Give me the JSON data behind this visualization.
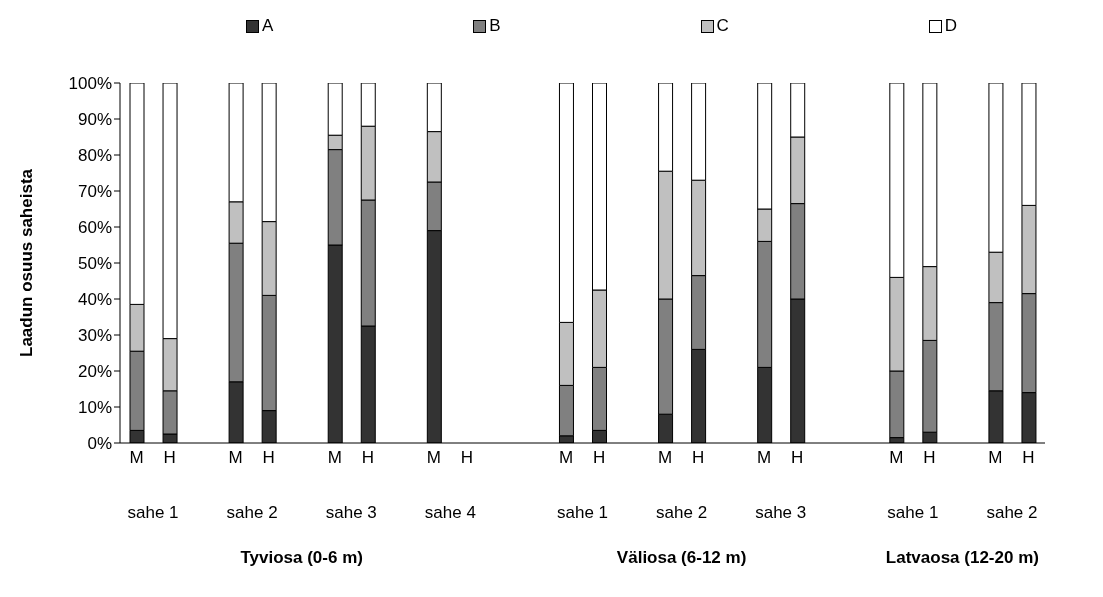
{
  "chart_data": {
    "type": "bar",
    "stacked": true,
    "ylabel": "Laadun osuus saheista",
    "categories": [
      "M",
      "H",
      null,
      "M",
      "H",
      null,
      "M",
      "H",
      null,
      "M",
      "H",
      null,
      null,
      "M",
      "H",
      null,
      "M",
      "H",
      null,
      "M",
      "H",
      null,
      null,
      "M",
      "H",
      null,
      "M",
      "H"
    ],
    "series": [
      {
        "name": "A",
        "color": "#333333",
        "values": [
          3.5,
          2.5,
          null,
          17,
          9,
          null,
          55,
          32.5,
          null,
          59,
          null,
          null,
          null,
          2,
          3.5,
          null,
          8,
          26,
          null,
          21,
          40,
          null,
          null,
          1.5,
          3,
          null,
          14.5,
          14
        ]
      },
      {
        "name": "B",
        "color": "#808080",
        "values": [
          22,
          12,
          null,
          38.5,
          32,
          null,
          26.5,
          35,
          null,
          13.5,
          null,
          null,
          null,
          14,
          17.5,
          null,
          32,
          20.5,
          null,
          35,
          26.5,
          null,
          null,
          18.5,
          25.5,
          null,
          24.5,
          27.5
        ]
      },
      {
        "name": "C",
        "color": "#c0c0c0",
        "values": [
          13,
          14.5,
          null,
          11.5,
          20.5,
          null,
          4,
          20.5,
          null,
          14,
          null,
          null,
          null,
          17.5,
          21.5,
          null,
          35.5,
          26.5,
          null,
          9,
          18.5,
          null,
          null,
          26,
          20.5,
          null,
          14,
          24.5
        ]
      },
      {
        "name": "D",
        "color": "#ffffff",
        "values": [
          61.5,
          71,
          null,
          33,
          38.5,
          null,
          14.5,
          12,
          null,
          13.5,
          null,
          null,
          null,
          66.5,
          57.5,
          null,
          24.5,
          27,
          null,
          35,
          15,
          null,
          null,
          54,
          51,
          null,
          47,
          34
        ]
      }
    ],
    "ylim": [
      0,
      100
    ],
    "yticks": [
      {
        "value": 0,
        "label": "0%"
      },
      {
        "value": 10,
        "label": "10%"
      },
      {
        "value": 20,
        "label": "20%"
      },
      {
        "value": 30,
        "label": "30%"
      },
      {
        "value": 40,
        "label": "40%"
      },
      {
        "value": 50,
        "label": "50%"
      },
      {
        "value": 60,
        "label": "60%"
      },
      {
        "value": 70,
        "label": "70%"
      },
      {
        "value": 80,
        "label": "80%"
      },
      {
        "value": 90,
        "label": "90%"
      },
      {
        "value": 100,
        "label": "100%"
      }
    ],
    "annotations": [
      "sahe 1",
      "sahe 2",
      "sahe 3",
      "sahe 4",
      "sahe 1",
      "sahe 2",
      "sahe 3",
      "sahe 1",
      "sahe 2",
      "Tyviosa (0-6 m)",
      "Väliosa (6-12 m)",
      "Latvaosa (12-20 m)"
    ],
    "grid": false,
    "legend": "top"
  }
}
